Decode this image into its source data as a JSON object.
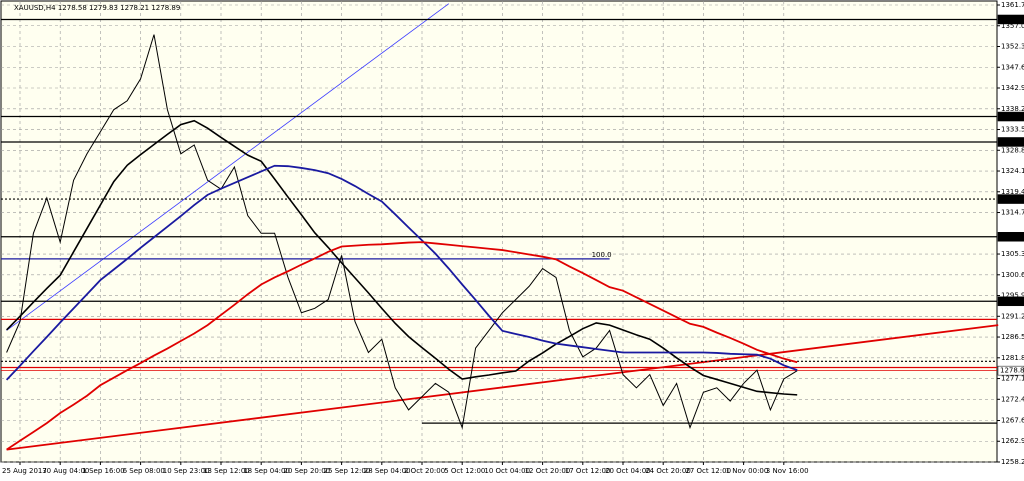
{
  "chart_data": {
    "type": "line",
    "title": "XAUUSD,H4  1278.58 1279.83 1278.21 1278.89",
    "categories": [
      null,
      "25 Aug 2017",
      null,
      null,
      "30 Aug 04:00",
      null,
      null,
      "1 Sep 16:00",
      null,
      null,
      "6 Sep 08:00",
      null,
      null,
      "10 Sep 23:00",
      null,
      null,
      "13 Sep 12:00",
      null,
      null,
      "18 Sep 04:00",
      null,
      null,
      "20 Sep 20:00",
      null,
      null,
      "25 Sep 12:00",
      null,
      null,
      "28 Sep 04:00",
      null,
      null,
      "2 Oct 20:00",
      null,
      null,
      "5 Oct 12:00",
      null,
      null,
      "10 Oct 04:00",
      null,
      null,
      "12 Oct 20:00",
      null,
      null,
      "17 Oct 12:00",
      null,
      null,
      "20 Oct 04:00",
      null,
      null,
      "24 Oct 20:00",
      null,
      null,
      "27 Oct 12:00",
      null,
      null,
      "1 Nov 00:00",
      null,
      null,
      "3 Nov 16:00",
      null
    ],
    "series": [
      {
        "color": "#000000",
        "width": 1,
        "values": [
          1283,
          1290,
          1310,
          1318,
          1308,
          1322,
          1328,
          1333,
          1338,
          1340,
          1345,
          1355,
          1338,
          1328,
          1330,
          1322,
          1320,
          1325,
          1314,
          1310,
          1310,
          1300,
          1292,
          1293,
          1295,
          1305,
          1290,
          1283,
          1286,
          1275,
          1270,
          1273,
          1276,
          1274,
          1266,
          1284,
          1288,
          1292,
          1295,
          1298,
          1302,
          1300,
          1288,
          1282,
          1284,
          1288,
          1278,
          1275,
          1278,
          1271,
          1276,
          1266,
          1274,
          1275,
          1272,
          1276,
          1279,
          1270,
          1277,
          1278.89
        ]
      },
      {
        "color": "#000000",
        "width": 1.6,
        "values": [
          1288.1,
          1291.2,
          1294.4,
          1297.5,
          1300.5,
          1305.8,
          1311.1,
          1316.4,
          1321.7,
          1325.4,
          1327.8,
          1330.1,
          1332.4,
          1334.6,
          1335.5,
          1333.8,
          1331.7,
          1329.7,
          1327.7,
          1326.3,
          1322.3,
          1318.2,
          1314.2,
          1310.1,
          1306.8,
          1303.3,
          1299.9,
          1296.5,
          1293,
          1289.6,
          1286.6,
          1284.1,
          1281.7,
          1279.2,
          1277,
          1277.5,
          1277.9,
          1278.4,
          1278.8,
          1281.1,
          1282.9,
          1284.9,
          1286.6,
          1288.4,
          1289.7,
          1289.2,
          1288.1,
          1287,
          1286,
          1284,
          1281.8,
          1279.7,
          1277.8,
          1276.9,
          1276,
          1275.1,
          1274.2,
          1273.9,
          1273.6,
          1273.4
        ]
      },
      {
        "color": "#1a1aa0",
        "width": 1.8,
        "values": [
          1276.8,
          1280,
          1283.3,
          1286.5,
          1289.8,
          1293,
          1296.2,
          1299.4,
          1301.8,
          1304.2,
          1306.7,
          1309.1,
          1311.5,
          1313.9,
          1316.4,
          1318.7,
          1320.1,
          1321.4,
          1322.7,
          1324,
          1325.3,
          1325.2,
          1324.8,
          1324.3,
          1323.6,
          1322.3,
          1320.7,
          1318.9,
          1317.2,
          1314.3,
          1311.3,
          1308.4,
          1305.4,
          1302,
          1298.4,
          1294.9,
          1291.3,
          1287.9,
          1287.2,
          1286.5,
          1285.7,
          1285,
          1284.6,
          1284.2,
          1283.8,
          1283.4,
          1283,
          1283,
          1283,
          1283,
          1283,
          1283,
          1283,
          1282.9,
          1282.7,
          1282.6,
          1282.5,
          1281.6,
          1280.1,
          1279
        ]
      },
      {
        "color": "#e00000",
        "width": 1.8,
        "values": [
          1261,
          1263,
          1265,
          1267,
          1269.3,
          1271.2,
          1273.2,
          1275.6,
          1277.3,
          1279,
          1280.6,
          1282.3,
          1283.9,
          1285.6,
          1287.3,
          1289.2,
          1291.5,
          1293.8,
          1296.2,
          1298.4,
          1300,
          1301.4,
          1302.9,
          1304.3,
          1305.8,
          1307,
          1307.2,
          1307.4,
          1307.5,
          1307.7,
          1307.9,
          1308,
          1307.7,
          1307.4,
          1307.1,
          1306.8,
          1306.5,
          1306.2,
          1305.7,
          1305.2,
          1304.7,
          1304.1,
          1302.5,
          1301,
          1299.4,
          1297.8,
          1297,
          1295.5,
          1294,
          1292.5,
          1291,
          1289.5,
          1288.8,
          1287.5,
          1286.3,
          1285,
          1283.6,
          1282.6,
          1281.6,
          1280.8
        ]
      }
    ],
    "ylim": [
      1258.2,
      1361.7
    ],
    "yticks": [
      {
        "value": 1361.7,
        "label": "1361.70"
      },
      {
        "value": 1357,
        "label": "1357.00"
      },
      {
        "value": 1352.3,
        "label": "1352.30"
      },
      {
        "value": 1347.6,
        "label": "1347.60"
      },
      {
        "value": 1342.9,
        "label": "1342.90"
      },
      {
        "value": 1338.2,
        "label": "1338.20"
      },
      {
        "value": 1333.5,
        "label": "1333.50"
      },
      {
        "value": 1328.8,
        "label": "1328.80"
      },
      {
        "value": 1324.1,
        "label": "1324.10"
      },
      {
        "value": 1319.4,
        "label": "1319.40"
      },
      {
        "value": 1314.7,
        "label": "1314.70"
      },
      {
        "value": 1305.3,
        "label": "1305.30"
      },
      {
        "value": 1300.6,
        "label": "1300.60"
      },
      {
        "value": 1295.9,
        "label": "1295.90"
      },
      {
        "value": 1291.2,
        "label": "1291.20"
      },
      {
        "value": 1286.5,
        "label": "1286.50"
      },
      {
        "value": 1281.8,
        "label": "1281.80"
      },
      {
        "value": 1277.1,
        "label": "1277.10"
      },
      {
        "value": 1272.4,
        "label": "1272.40"
      },
      {
        "value": 1267.6,
        "label": "1267.60"
      },
      {
        "value": 1262.9,
        "label": "1262.90"
      },
      {
        "value": 1258.2,
        "label": "1258.20"
      }
    ],
    "grid": true,
    "levels": [
      {
        "price": 1358.42,
        "color": "#000000",
        "tag": true
      },
      {
        "price": 1336.44,
        "color": "#000000",
        "tag": true
      },
      {
        "price": 1330.68,
        "color": "#000000",
        "tag": true
      },
      {
        "price": 1317.75,
        "color": "#000000",
        "tag": true,
        "dotted": true
      },
      {
        "price": 1309.21,
        "color": "#000000",
        "tag": true
      },
      {
        "price": 1294.6,
        "color": "#000000",
        "tag": true
      },
      {
        "price": 1278.89,
        "color": "#e00000",
        "tag": true,
        "current": true
      },
      {
        "price": 1290.5,
        "color": "#e00000"
      },
      {
        "price": 1279.6,
        "color": "#e00000"
      },
      {
        "price": 1281,
        "color": "#000000",
        "dotted": true
      },
      {
        "price": 1267,
        "color": "#000000",
        "from": 31
      },
      {
        "price": 1304.2,
        "color": "#1a1aa0",
        "to": 45,
        "label": "100.0"
      }
    ],
    "trendlines": [
      {
        "color": "#3a3aff",
        "width": 0.8,
        "points": [
          [
            0,
            1288
          ],
          [
            33,
            1362
          ]
        ]
      },
      {
        "color": "#e00000",
        "width": 1.8,
        "points": [
          [
            0,
            1261
          ],
          [
            74,
            1289.2
          ]
        ]
      }
    ]
  }
}
